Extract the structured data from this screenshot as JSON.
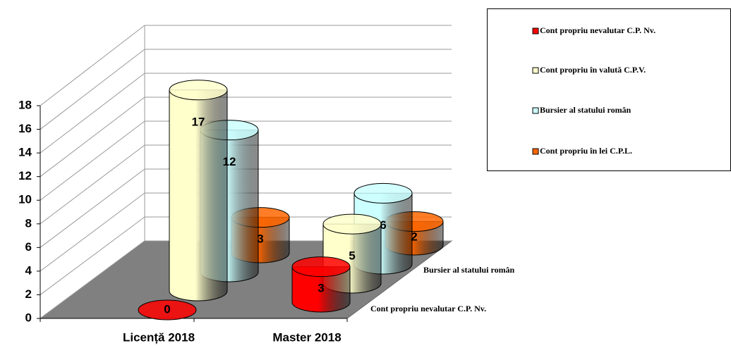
{
  "chart_data": {
    "type": "bar3d-cylinder",
    "categories": [
      "Licență 2018",
      "Master 2018"
    ],
    "series": [
      {
        "name": "Cont propriu nevalutar C.P. Nv.",
        "color": "#ff0000",
        "values": [
          0,
          3
        ]
      },
      {
        "name": "Cont propriu în valută C.P.V.",
        "color": "#ffffcc",
        "values": [
          17,
          5
        ]
      },
      {
        "name": "Bursier al statului român",
        "color": "#ccffff",
        "values": [
          12,
          6
        ]
      },
      {
        "name": "Cont propriu în lei C.P.L.",
        "color": "#ff6600",
        "values": [
          3,
          2
        ]
      }
    ],
    "ylim": [
      0,
      18
    ],
    "yticks": [
      0,
      2,
      4,
      6,
      8,
      10,
      12,
      14,
      16,
      18
    ],
    "grid": true,
    "legend": "upper right"
  }
}
